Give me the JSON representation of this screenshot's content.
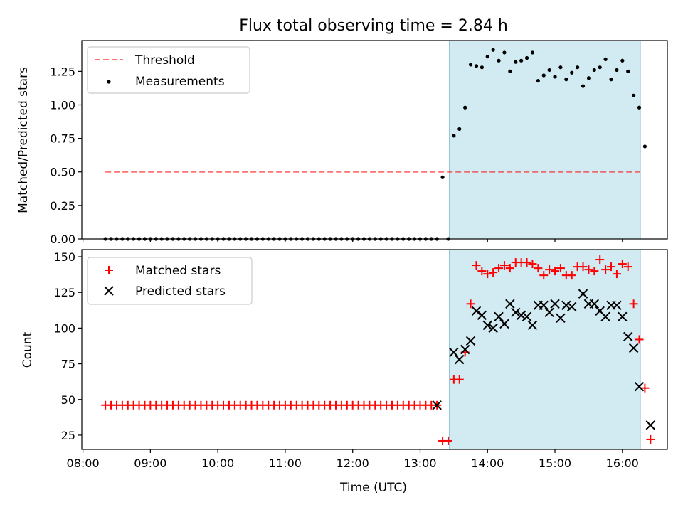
{
  "chart_data": {
    "title": "Flux total observing time = 2.84 h",
    "xlabel": "Time (UTC)",
    "x_ticks": [
      "08:00",
      "09:00",
      "10:00",
      "11:00",
      "12:00",
      "13:00",
      "14:00",
      "15:00",
      "16:00"
    ],
    "xlim": [
      "07:59",
      "16:40"
    ],
    "highlight_span": [
      "13:26",
      "16:16"
    ],
    "highlight_color": "#add8e6",
    "panels": [
      {
        "type": "scatter",
        "ylabel": "Matched/Predicted stars",
        "ylim": [
          0,
          1.48
        ],
        "y_ticks": [
          "0.00",
          "0.25",
          "0.50",
          "0.75",
          "1.00",
          "1.25"
        ],
        "legend_position": "upper left",
        "threshold": {
          "name": "Threshold",
          "value": 0.5,
          "x_range": [
            "08:20",
            "16:16"
          ],
          "color": "#ff0000",
          "style": "dashed"
        },
        "series": [
          {
            "name": "Measurements",
            "color": "#000000",
            "marker": "dot",
            "x_start": "08:20",
            "x_step_min": 5,
            "values": [
              0,
              0,
              0,
              0,
              0,
              0,
              0,
              0,
              0,
              0,
              0,
              0,
              0,
              0,
              0,
              0,
              0,
              0,
              0,
              0,
              0,
              0,
              0,
              0,
              0,
              0,
              0,
              0,
              0,
              0,
              0,
              0,
              0,
              0,
              0,
              0,
              0,
              0,
              0,
              0,
              0,
              0,
              0,
              0,
              0,
              0,
              0,
              0,
              0,
              0,
              0,
              0,
              0,
              0,
              0,
              0,
              0,
              0,
              0,
              0,
              0.46,
              0,
              0.77,
              0.82,
              0.98,
              1.3,
              1.29,
              1.28,
              1.36,
              1.41,
              1.33,
              1.39,
              1.25,
              1.32,
              1.33,
              1.35,
              1.39,
              1.18,
              1.22,
              1.26,
              1.21,
              1.28,
              1.19,
              1.24,
              1.28,
              1.14,
              1.2,
              1.26,
              1.28,
              1.34,
              1.19,
              1.26,
              1.33,
              1.25,
              1.07,
              0.98,
              0.69
            ]
          }
        ]
      },
      {
        "type": "scatter",
        "ylabel": "Count",
        "ylim": [
          15,
          155
        ],
        "y_ticks": [
          "25",
          "50",
          "75",
          "100",
          "125",
          "150"
        ],
        "legend_position": "upper left",
        "series": [
          {
            "name": "Matched stars",
            "color": "#ff0000",
            "marker": "plus",
            "points": [
              [
                "08:20",
                46
              ],
              [
                "08:25",
                46
              ],
              [
                "08:30",
                46
              ],
              [
                "08:35",
                46
              ],
              [
                "08:40",
                46
              ],
              [
                "08:45",
                46
              ],
              [
                "08:50",
                46
              ],
              [
                "08:55",
                46
              ],
              [
                "09:00",
                46
              ],
              [
                "09:05",
                46
              ],
              [
                "09:10",
                46
              ],
              [
                "09:15",
                46
              ],
              [
                "09:20",
                46
              ],
              [
                "09:25",
                46
              ],
              [
                "09:30",
                46
              ],
              [
                "09:35",
                46
              ],
              [
                "09:40",
                46
              ],
              [
                "09:45",
                46
              ],
              [
                "09:50",
                46
              ],
              [
                "09:55",
                46
              ],
              [
                "10:00",
                46
              ],
              [
                "10:05",
                46
              ],
              [
                "10:10",
                46
              ],
              [
                "10:15",
                46
              ],
              [
                "10:20",
                46
              ],
              [
                "10:25",
                46
              ],
              [
                "10:30",
                46
              ],
              [
                "10:35",
                46
              ],
              [
                "10:40",
                46
              ],
              [
                "10:45",
                46
              ],
              [
                "10:50",
                46
              ],
              [
                "10:55",
                46
              ],
              [
                "11:00",
                46
              ],
              [
                "11:05",
                46
              ],
              [
                "11:10",
                46
              ],
              [
                "11:15",
                46
              ],
              [
                "11:20",
                46
              ],
              [
                "11:25",
                46
              ],
              [
                "11:30",
                46
              ],
              [
                "11:35",
                46
              ],
              [
                "11:40",
                46
              ],
              [
                "11:45",
                46
              ],
              [
                "11:50",
                46
              ],
              [
                "11:55",
                46
              ],
              [
                "12:00",
                46
              ],
              [
                "12:05",
                46
              ],
              [
                "12:10",
                46
              ],
              [
                "12:15",
                46
              ],
              [
                "12:20",
                46
              ],
              [
                "12:25",
                46
              ],
              [
                "12:30",
                46
              ],
              [
                "12:35",
                46
              ],
              [
                "12:40",
                46
              ],
              [
                "12:45",
                46
              ],
              [
                "12:50",
                46
              ],
              [
                "12:55",
                46
              ],
              [
                "13:00",
                46
              ],
              [
                "13:05",
                46
              ],
              [
                "13:10",
                46
              ],
              [
                "13:15",
                46
              ],
              [
                "13:20",
                21
              ],
              [
                "13:25",
                21
              ],
              [
                "13:30",
                64
              ],
              [
                "13:35",
                64
              ],
              [
                "13:40",
                83
              ],
              [
                "13:45",
                117
              ],
              [
                "13:50",
                144
              ],
              [
                "13:55",
                140
              ],
              [
                "14:00",
                138
              ],
              [
                "14:05",
                139
              ],
              [
                "14:10",
                142
              ],
              [
                "14:15",
                144
              ],
              [
                "14:20",
                142
              ],
              [
                "14:25",
                146
              ],
              [
                "14:30",
                146
              ],
              [
                "14:35",
                146
              ],
              [
                "14:40",
                145
              ],
              [
                "14:45",
                142
              ],
              [
                "14:50",
                137
              ],
              [
                "14:55",
                141
              ],
              [
                "15:00",
                140
              ],
              [
                "15:05",
                142
              ],
              [
                "15:10",
                137
              ],
              [
                "15:15",
                137
              ],
              [
                "15:20",
                143
              ],
              [
                "15:25",
                143
              ],
              [
                "15:30",
                141
              ],
              [
                "15:35",
                140
              ],
              [
                "15:40",
                148
              ],
              [
                "15:45",
                141
              ],
              [
                "15:50",
                143
              ],
              [
                "15:55",
                138
              ],
              [
                "16:00",
                145
              ],
              [
                "16:05",
                143
              ],
              [
                "16:10",
                117
              ],
              [
                "16:15",
                92
              ],
              [
                "16:20",
                58
              ],
              [
                "16:25",
                22
              ]
            ]
          },
          {
            "name": "Predicted stars",
            "color": "#000000",
            "marker": "x",
            "points": [
              [
                "13:15",
                46
              ],
              [
                "13:30",
                83
              ],
              [
                "13:35",
                78
              ],
              [
                "13:40",
                85
              ],
              [
                "13:45",
                91
              ],
              [
                "13:50",
                112
              ],
              [
                "13:55",
                109
              ],
              [
                "14:00",
                102
              ],
              [
                "14:05",
                100
              ],
              [
                "14:10",
                108
              ],
              [
                "14:15",
                103
              ],
              [
                "14:20",
                117
              ],
              [
                "14:25",
                111
              ],
              [
                "14:30",
                109
              ],
              [
                "14:35",
                108
              ],
              [
                "14:40",
                102
              ],
              [
                "14:45",
                116
              ],
              [
                "14:50",
                116
              ],
              [
                "14:55",
                111
              ],
              [
                "15:00",
                117
              ],
              [
                "15:05",
                107
              ],
              [
                "15:10",
                116
              ],
              [
                "15:15",
                115
              ],
              [
                "15:25",
                124
              ],
              [
                "15:30",
                117
              ],
              [
                "15:35",
                117
              ],
              [
                "15:40",
                112
              ],
              [
                "15:45",
                108
              ],
              [
                "15:50",
                116
              ],
              [
                "15:55",
                116
              ],
              [
                "16:00",
                108
              ],
              [
                "16:05",
                94
              ],
              [
                "16:10",
                86
              ],
              [
                "16:15",
                59
              ],
              [
                "16:25",
                32
              ]
            ]
          }
        ]
      }
    ]
  }
}
